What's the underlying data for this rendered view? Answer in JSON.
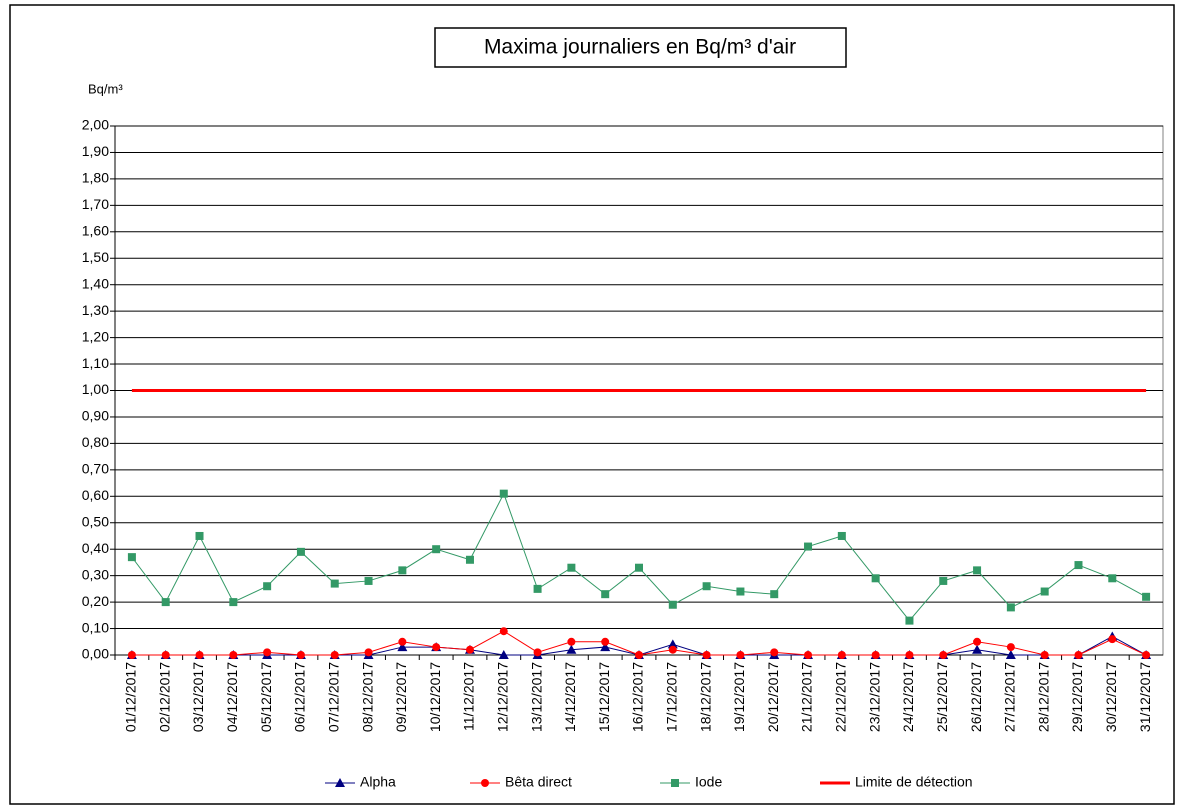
{
  "chart_data": {
    "type": "line",
    "title": "Maxima journaliers en Bq/m³ d'air",
    "y_label": "Bq/m³",
    "categories": [
      "01/12/2017",
      "02/12/2017",
      "03/12/2017",
      "04/12/2017",
      "05/12/2017",
      "06/12/2017",
      "07/12/2017",
      "08/12/2017",
      "09/12/2017",
      "10/12/2017",
      "11/12/2017",
      "12/12/2017",
      "13/12/2017",
      "14/12/2017",
      "15/12/2017",
      "16/12/2017",
      "17/12/2017",
      "18/12/2017",
      "19/12/2017",
      "20/12/2017",
      "21/12/2017",
      "22/12/2017",
      "23/12/2017",
      "24/12/2017",
      "25/12/2017",
      "26/12/2017",
      "27/12/2017",
      "28/12/2017",
      "29/12/2017",
      "30/12/2017",
      "31/12/2017"
    ],
    "series": [
      {
        "name": "Alpha",
        "color": "#000080",
        "marker": "triangle",
        "values": [
          0,
          0,
          0,
          0,
          0,
          0,
          0,
          0,
          0.03,
          0.03,
          0.02,
          0,
          0,
          0.02,
          0.03,
          0,
          0.04,
          0,
          0,
          0,
          0,
          0,
          0,
          0,
          0,
          0.02,
          0,
          0,
          0,
          0.07,
          0
        ]
      },
      {
        "name": "Bêta direct",
        "color": "#ff0000",
        "marker": "circle",
        "values": [
          0,
          0,
          0,
          0,
          0.01,
          0,
          0,
          0.01,
          0.05,
          0.03,
          0.02,
          0.09,
          0.01,
          0.05,
          0.05,
          0,
          0.02,
          0,
          0,
          0.01,
          0,
          0,
          0,
          0,
          0,
          0.05,
          0.03,
          0,
          0,
          0.06,
          0
        ]
      },
      {
        "name": "Iode",
        "color": "#339966",
        "marker": "square",
        "values": [
          0.37,
          0.2,
          0.45,
          0.2,
          0.26,
          0.39,
          0.27,
          0.28,
          0.32,
          0.4,
          0.36,
          0.61,
          0.25,
          0.33,
          0.23,
          0.33,
          0.19,
          0.26,
          0.24,
          0.23,
          0.41,
          0.45,
          0.29,
          0.13,
          0.28,
          0.32,
          0.18,
          0.24,
          0.34,
          0.29,
          0.22
        ]
      },
      {
        "name": "Limite de détection",
        "color": "#ff0000",
        "marker": "none",
        "width": 3,
        "values": [
          1,
          1,
          1,
          1,
          1,
          1,
          1,
          1,
          1,
          1,
          1,
          1,
          1,
          1,
          1,
          1,
          1,
          1,
          1,
          1,
          1,
          1,
          1,
          1,
          1,
          1,
          1,
          1,
          1,
          1,
          1
        ]
      }
    ],
    "ylim": [
      0,
      2
    ],
    "yticks": [
      {
        "value": 0,
        "label": "0,00"
      },
      {
        "value": 0.1,
        "label": "0,10"
      },
      {
        "value": 0.2,
        "label": "0,20"
      },
      {
        "value": 0.3,
        "label": "0,30"
      },
      {
        "value": 0.4,
        "label": "0,40"
      },
      {
        "value": 0.5,
        "label": "0,50"
      },
      {
        "value": 0.6,
        "label": "0,60"
      },
      {
        "value": 0.7,
        "label": "0,70"
      },
      {
        "value": 0.8,
        "label": "0,80"
      },
      {
        "value": 0.9,
        "label": "0,90"
      },
      {
        "value": 1,
        "label": "1,00"
      },
      {
        "value": 1.1,
        "label": "1,10"
      },
      {
        "value": 1.2,
        "label": "1,20"
      },
      {
        "value": 1.3,
        "label": "1,30"
      },
      {
        "value": 1.4,
        "label": "1,40"
      },
      {
        "value": 1.5,
        "label": "1,50"
      },
      {
        "value": 1.6,
        "label": "1,60"
      },
      {
        "value": 1.7,
        "label": "1,70"
      },
      {
        "value": 1.8,
        "label": "1,80"
      },
      {
        "value": 1.9,
        "label": "1,90"
      },
      {
        "value": 2,
        "label": "2,00"
      }
    ],
    "grid": true,
    "legend": "bottom"
  }
}
